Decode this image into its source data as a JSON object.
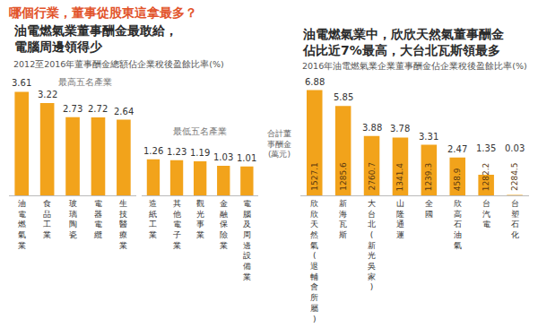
{
  "header": "哪個行業，董事從股東這拿最多？",
  "chart_data": [
    {
      "type": "bar",
      "title": "油電燃氣業董事酬金最敢給，\n電腦周邊領得少",
      "subtitle": "2012至2016年董事酬金總額佔企業稅後盈餘比率(%)",
      "annotation": "最高五名產業",
      "categories": [
        "油電燃氣業",
        "食品工業",
        "玻璃陶瓷",
        "電器電纜",
        "生技醫療業"
      ],
      "values": [
        3.61,
        3.22,
        2.73,
        2.72,
        2.64
      ],
      "color": "#f2a31b",
      "ylim": [
        0,
        4
      ],
      "data_labels": true,
      "tick_labels": "x"
    },
    {
      "type": "bar",
      "annotation": "最低五名產業",
      "categories": [
        "造紙工業",
        "其他電子業",
        "觀光事業",
        "金融保險業",
        "電腦及周邊設備業"
      ],
      "values": [
        1.26,
        1.23,
        1.19,
        1.03,
        1.01
      ],
      "color": "#f2a31b",
      "ylim": [
        0,
        4
      ],
      "data_labels": true,
      "tick_labels": "x"
    },
    {
      "type": "bar",
      "title": "油電燃氣業中，欣欣天然氣董事酬金\n佔比近7%最高，大台北瓦斯領最多",
      "subtitle": "2016年油電燃氣業企業董事酬金佔企業稅後盈餘比率(%)",
      "annotation": "合計董事酬金(萬元)",
      "categories": [
        "欣欣天然氣(退輔會所屬)",
        "新海瓦斯",
        "大台北(新光吳家)",
        "山隆通運",
        "全國",
        "欣高石油氣",
        "台汽電",
        "台塑石化"
      ],
      "values": [
        6.88,
        5.85,
        3.88,
        3.78,
        3.31,
        2.47,
        1.35,
        0.03
      ],
      "totals": [
        1527.1,
        1285.6,
        2760.7,
        1341.4,
        1239.3,
        458.9,
        1282.2,
        2284.5
      ],
      "color": "#f2a31b",
      "ylim": [
        0,
        7.5
      ],
      "data_labels": true,
      "tick_labels": "x"
    }
  ]
}
